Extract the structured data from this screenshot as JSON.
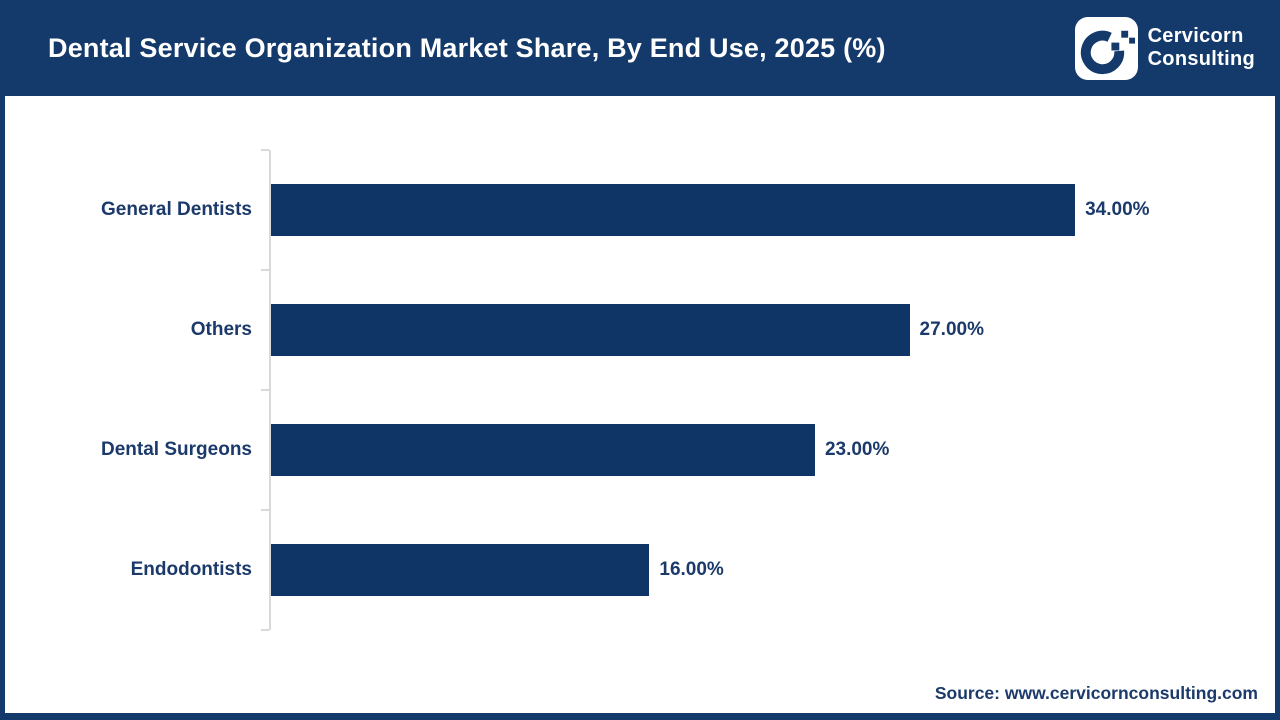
{
  "header": {
    "title": "Dental Service Organization Market Share, By End Use, 2025 (%)",
    "logo": {
      "icon": "cervicorn-c-pixel-mark",
      "line1": "Cervicorn",
      "line2": "Consulting"
    }
  },
  "chart_data": {
    "type": "bar",
    "orientation": "horizontal",
    "title": "Dental Service Organization Market Share, By End Use, 2025 (%)",
    "categories": [
      "General Dentists",
      "Others",
      "Dental Surgeons",
      "Endodontists"
    ],
    "values": [
      34,
      27,
      23,
      16
    ],
    "value_labels": [
      "34.00%",
      "27.00%",
      "23.00%",
      "16.00%"
    ],
    "unit": "%",
    "xlim": [
      0,
      40
    ],
    "grid": false,
    "legend": "none",
    "bar_color": "#0F3566",
    "label_color": "#1B3A6B"
  },
  "footer": {
    "source": "Source: www.cervicornconsulting.com"
  },
  "colors": {
    "navy": "#0F3566",
    "banner": "#14396B",
    "text_navy": "#1B3A6B",
    "axis": "#D9D9D9",
    "background": "#FFFFFF"
  }
}
